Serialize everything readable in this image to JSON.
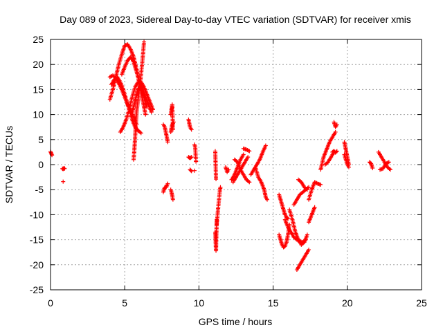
{
  "chart_data": {
    "type": "scatter",
    "title": "Day 089 of 2023, Sidereal Day-to-day VTEC variation (SDTVAR) for receiver xmis",
    "xlabel": "GPS time / hours",
    "ylabel": "SDTVAR / TECUs",
    "xlim": [
      0,
      25
    ],
    "ylim": [
      -25,
      25
    ],
    "xticks": [
      0,
      5,
      10,
      15,
      20,
      25
    ],
    "yticks": [
      -25,
      -20,
      -15,
      -10,
      -5,
      0,
      5,
      10,
      15,
      20,
      25
    ],
    "grid": true,
    "marker": "+",
    "color": "#ff0000",
    "segments": [
      {
        "x": [
          0.0,
          0.05,
          0.1
        ],
        "y": [
          2.6,
          2.2,
          1.9
        ]
      },
      {
        "x": [
          0.8,
          0.85,
          0.9,
          0.95
        ],
        "y": [
          -0.8,
          -0.9,
          -0.7,
          -0.8
        ]
      },
      {
        "x": [
          0.85
        ],
        "y": [
          -3.4
        ]
      },
      {
        "x": [
          4.0,
          4.2,
          4.4,
          4.6,
          4.8,
          5.0,
          5.2,
          5.4,
          5.6,
          5.8,
          6.0,
          6.2,
          6.4
        ],
        "y": [
          13,
          15,
          17.5,
          20,
          22,
          23.8,
          24,
          23,
          21.5,
          19,
          16,
          13,
          10
        ]
      },
      {
        "x": [
          4.0,
          4.2,
          4.4,
          4.6,
          4.8,
          5.0,
          5.2,
          5.4,
          5.6,
          5.8
        ],
        "y": [
          17.5,
          17.8,
          17.3,
          16.2,
          15,
          13.5,
          12,
          10.8,
          9.5,
          8
        ]
      },
      {
        "x": [
          4.1,
          4.3,
          4.5,
          4.7,
          4.9,
          5.1,
          5.3,
          5.5,
          5.7,
          5.9,
          6.1
        ],
        "y": [
          16,
          17,
          17.5,
          16.5,
          15,
          13,
          11,
          9,
          7.5,
          6.8,
          6.3
        ]
      },
      {
        "x": [
          4.7,
          4.9,
          5.1,
          5.3,
          5.5,
          5.7,
          5.9,
          6.1,
          6.3,
          6.5,
          6.7,
          6.9
        ],
        "y": [
          6.5,
          7.5,
          9,
          11,
          13.5,
          15.5,
          16.5,
          16.5,
          15.5,
          14,
          12.5,
          11
        ]
      },
      {
        "x": [
          4.8,
          5.0,
          5.2,
          5.4,
          5.6,
          5.8,
          6.0,
          6.2,
          6.4,
          6.6,
          6.8
        ],
        "y": [
          18,
          19.5,
          20.8,
          21.5,
          20.5,
          18.5,
          16.5,
          15,
          13.5,
          12,
          10.5
        ]
      },
      {
        "x": [
          5.6,
          5.65,
          5.7,
          5.75,
          5.8,
          5.9,
          6.0,
          6.1,
          6.2,
          6.3
        ],
        "y": [
          1,
          3,
          5.5,
          8,
          10.5,
          13,
          15.5,
          18,
          21,
          24.5
        ]
      },
      {
        "x": [
          5.5,
          5.6,
          5.7,
          5.8,
          5.9,
          6.0,
          6.1,
          6.2,
          6.3,
          6.4,
          6.5
        ],
        "y": [
          10.5,
          11.5,
          12.8,
          14,
          15,
          15.5,
          15.3,
          14.5,
          13.5,
          12.5,
          11.5
        ]
      },
      {
        "x": [
          7.6,
          7.7,
          7.8,
          7.9
        ],
        "y": [
          8,
          7.5,
          6,
          4.5
        ]
      },
      {
        "x": [
          7.6,
          7.7,
          7.8,
          7.9
        ],
        "y": [
          -5.5,
          -4.5,
          -4.5,
          -3.8
        ]
      },
      {
        "x": [
          8.1,
          8.15,
          8.2,
          8.25
        ],
        "y": [
          10,
          11,
          12,
          7
        ]
      },
      {
        "x": [
          8.1,
          8.2,
          8.3
        ],
        "y": [
          6.5,
          8,
          8.5
        ]
      },
      {
        "x": [
          8.1,
          8.15,
          8.2,
          8.25
        ],
        "y": [
          -5,
          -5.5,
          -6.2,
          -7
        ]
      },
      {
        "x": [
          9.3,
          9.4,
          9.5
        ],
        "y": [
          9,
          7.5,
          7
        ]
      },
      {
        "x": [
          9.3,
          9.4,
          9.5
        ],
        "y": [
          1.5,
          1.3,
          1.5
        ]
      },
      {
        "x": [
          9.4,
          9.5
        ],
        "y": [
          -1,
          -1.3
        ]
      },
      {
        "x": [
          9.7,
          9.75,
          9.8
        ],
        "y": [
          4,
          3.5,
          0.6
        ]
      },
      {
        "x": [
          9.7
        ],
        "y": [
          -1.2
        ]
      },
      {
        "x": [
          11.1,
          11.15
        ],
        "y": [
          2.7,
          -2.9
        ]
      },
      {
        "x": [
          11.1,
          11.15,
          11.2
        ],
        "y": [
          -13.5,
          -17.2,
          -11
        ]
      },
      {
        "x": [
          11.2,
          11.3,
          11.4,
          11.45
        ],
        "y": [
          -12,
          -8.5,
          -5.5,
          -4.5
        ]
      },
      {
        "x": [
          11.8,
          11.9,
          12.0
        ],
        "y": [
          -0.5,
          -1.5,
          -1
        ]
      },
      {
        "x": [
          12.2,
          12.4,
          12.6,
          12.8,
          13.0
        ],
        "y": [
          -3,
          -2,
          -0.5,
          1,
          2
        ]
      },
      {
        "x": [
          12.3,
          12.5,
          12.7,
          12.9,
          13.1,
          13.3
        ],
        "y": [
          -3.5,
          -2.5,
          -1.5,
          -0.5,
          0.5,
          1.5
        ]
      },
      {
        "x": [
          12.4,
          12.6,
          12.8,
          13.0,
          13.2,
          13.4
        ],
        "y": [
          1,
          0.5,
          -1,
          -2,
          -3,
          -3.5
        ]
      },
      {
        "x": [
          13.0,
          13.2,
          13.4
        ],
        "y": [
          3.2,
          3,
          2.7
        ]
      },
      {
        "x": [
          13.5,
          13.7,
          13.9,
          14.1,
          14.3,
          14.5
        ],
        "y": [
          -2,
          -1,
          0,
          1,
          2.5,
          3.8
        ]
      },
      {
        "x": [
          13.8,
          14.0,
          14.2,
          14.4,
          14.5,
          14.6
        ],
        "y": [
          -0.5,
          -2.5,
          -3.5,
          -5,
          -6.5,
          -7
        ]
      },
      {
        "x": [
          15.4,
          15.5,
          15.6,
          15.7,
          15.8,
          15.9,
          16.0
        ],
        "y": [
          -6,
          -7,
          -8,
          -9,
          -10,
          -10.5,
          -10.8
        ]
      },
      {
        "x": [
          15.4,
          15.5,
          15.6,
          15.7,
          15.8,
          15.9,
          16.0,
          16.1
        ],
        "y": [
          -14,
          -15,
          -16,
          -16.5,
          -16.3,
          -15.5,
          -14,
          -12
        ]
      },
      {
        "x": [
          15.8,
          16.0,
          16.2,
          16.4,
          16.6,
          16.8,
          17.0,
          17.2
        ],
        "y": [
          -11,
          -12.5,
          -13.5,
          -14.5,
          -15,
          -15.3,
          -15.5,
          -15
        ]
      },
      {
        "x": [
          16.1,
          16.3,
          16.5,
          16.7,
          16.9,
          17.1,
          17.3
        ],
        "y": [
          -9,
          -11,
          -13.5,
          -15,
          -16,
          -15.5,
          -14
        ]
      },
      {
        "x": [
          16.6,
          16.8,
          17.0,
          17.2,
          17.4
        ],
        "y": [
          -21,
          -20,
          -19,
          -18,
          -17
        ]
      },
      {
        "x": [
          16.4,
          16.6,
          16.8,
          17.0,
          17.2,
          17.4
        ],
        "y": [
          -8,
          -7,
          -6,
          -5.5,
          -5,
          -4.5
        ]
      },
      {
        "x": [
          16.7,
          16.9,
          17.1,
          17.3
        ],
        "y": [
          -3,
          -3.5,
          -4.5,
          -5
        ]
      },
      {
        "x": [
          17.4,
          17.6,
          17.8
        ],
        "y": [
          -11.5,
          -10,
          -8.5
        ]
      },
      {
        "x": [
          17.4,
          17.6,
          17.8,
          18.0,
          18.2
        ],
        "y": [
          -7,
          -5,
          -3.5,
          -3.8,
          -4
        ]
      },
      {
        "x": [
          18.2,
          18.4,
          18.6,
          18.8,
          19.0,
          19.2
        ],
        "y": [
          -1,
          1.5,
          3,
          4.5,
          5.5,
          6.5
        ]
      },
      {
        "x": [
          18.5,
          18.7,
          18.9,
          19.1
        ],
        "y": [
          0,
          0.5,
          1.5,
          2.5
        ]
      },
      {
        "x": [
          19.1,
          19.2,
          19.3
        ],
        "y": [
          8.5,
          7.5,
          8
        ]
      },
      {
        "x": [
          19.0,
          19.1,
          19.2,
          19.3
        ],
        "y": [
          2.5,
          2.7,
          2.4,
          2.7
        ]
      },
      {
        "x": [
          19.8,
          19.9,
          20.0,
          20.1
        ],
        "y": [
          4.5,
          3,
          1.5,
          0
        ]
      },
      {
        "x": [
          19.8,
          19.9,
          20.0,
          20.1
        ],
        "y": [
          2,
          1,
          0,
          -0.5
        ]
      },
      {
        "x": [
          21.5,
          21.6,
          21.7
        ],
        "y": [
          0.5,
          0.2,
          -0.7
        ]
      },
      {
        "x": [
          22.1,
          22.3,
          22.5,
          22.7,
          22.9
        ],
        "y": [
          2.5,
          1.5,
          0.5,
          -0.5,
          -1
        ]
      },
      {
        "x": [
          22.2,
          22.4,
          22.6,
          22.8
        ],
        "y": [
          -1,
          -0.8,
          0.2,
          0.5
        ]
      }
    ]
  }
}
